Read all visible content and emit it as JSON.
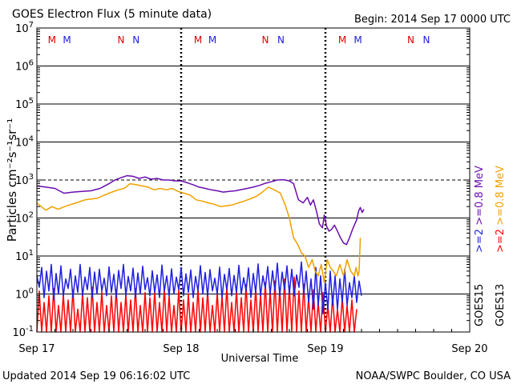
{
  "chart_data": {
    "type": "line",
    "title": "GOES Electron Flux (5 minute data)",
    "begin_label": "Begin: 2014 Sep 17 0000 UTC",
    "xlabel": "Universal Time",
    "ylabel": "Particles cm⁻²s⁻¹sr⁻¹",
    "y_scale": "log",
    "ylim": [
      0.1,
      10000000
    ],
    "y_tick_exponents": [
      "-1",
      "0",
      "1",
      "2",
      "3",
      "4",
      "5",
      "6",
      "7"
    ],
    "x_unit": "hours since 2014 Sep 17 0000 UTC",
    "xlim": [
      0,
      72
    ],
    "x_ticks": [
      {
        "label": "Sep 17",
        "value": 0
      },
      {
        "label": "Sep 18",
        "value": 24
      },
      {
        "label": "Sep 19",
        "value": 48
      },
      {
        "label": "Sep 20",
        "value": 72
      }
    ],
    "threshold": {
      "value": 1000,
      "style": "dashed"
    },
    "day_markers": [
      {
        "value": 24
      },
      {
        "value": 48
      }
    ],
    "mn_markers": [
      {
        "label": "M",
        "x": 2.5,
        "color": "#e00000"
      },
      {
        "label": "M",
        "x": 5.0,
        "color": "#2020e0"
      },
      {
        "label": "N",
        "x": 14.0,
        "color": "#e00000"
      },
      {
        "label": "N",
        "x": 16.5,
        "color": "#2020e0"
      },
      {
        "label": "M",
        "x": 26.8,
        "color": "#e00000"
      },
      {
        "label": "M",
        "x": 29.2,
        "color": "#2020e0"
      },
      {
        "label": "N",
        "x": 38.0,
        "color": "#e00000"
      },
      {
        "label": "N",
        "x": 40.6,
        "color": "#2020e0"
      },
      {
        "label": "M",
        "x": 50.8,
        "color": "#e00000"
      },
      {
        "label": "M",
        "x": 53.4,
        "color": "#2020e0"
      },
      {
        "label": "N",
        "x": 62.2,
        "color": "#e00000"
      },
      {
        "label": "N",
        "x": 64.8,
        "color": "#2020e0"
      }
    ],
    "legend": [
      {
        "sat": "GOES15",
        "entries": [
          {
            "label": ">=2",
            "color": "#2020e0"
          },
          {
            "label": ">=0.8 MeV",
            "color": "#6a0dad"
          }
        ]
      },
      {
        "sat": "GOES13",
        "entries": [
          {
            "label": ">=2",
            "color": "#ff0000"
          },
          {
            "label": ">=0.8 MeV",
            "color": "#f0a000"
          }
        ]
      }
    ],
    "series": [
      {
        "name": "GOES15 >=0.8 MeV",
        "color": "#6a0dad",
        "x": [
          0,
          1.5,
          3,
          4.5,
          6,
          7.5,
          9,
          10.5,
          12,
          13,
          14,
          15,
          16,
          17,
          18,
          19,
          20,
          21,
          22,
          23,
          24,
          25,
          26,
          27,
          28,
          29,
          30,
          31,
          32,
          33,
          34,
          35,
          36,
          37,
          38,
          39,
          40,
          41,
          42,
          42.7,
          43.5,
          44.3,
          45,
          45.5,
          46,
          46.5,
          47,
          47.5,
          47.8,
          48.2,
          48.6,
          49,
          49.5,
          50,
          50.5,
          51,
          51.5,
          52,
          52.5,
          52.9,
          53.2,
          53.5,
          53.8,
          54.1,
          54.4
        ],
        "y": [
          700,
          650,
          600,
          450,
          480,
          500,
          520,
          600,
          800,
          1000,
          1150,
          1300,
          1250,
          1100,
          1200,
          1050,
          1100,
          1000,
          1000,
          950,
          950,
          850,
          750,
          650,
          600,
          550,
          520,
          480,
          500,
          520,
          560,
          600,
          650,
          720,
          820,
          900,
          1000,
          1020,
          950,
          800,
          300,
          250,
          350,
          220,
          300,
          150,
          70,
          55,
          120,
          60,
          45,
          50,
          65,
          45,
          30,
          22,
          20,
          30,
          50,
          70,
          90,
          150,
          190,
          140,
          170
        ]
      },
      {
        "name": "GOES13 >=0.8 MeV",
        "color": "#f0a000",
        "x": [
          0,
          0.7,
          1.5,
          2.5,
          3.5,
          5,
          6.5,
          8,
          10,
          12,
          13.5,
          14.5,
          15.5,
          16.5,
          17.5,
          18.5,
          19.5,
          20.5,
          21.5,
          22.5,
          23.5,
          24.5,
          25.5,
          26.5,
          27.5,
          28.5,
          29.5,
          30.5,
          31.5,
          32.5,
          33.5,
          34.5,
          35.5,
          36.5,
          37.5,
          38.5,
          39.5,
          40.5,
          41.3,
          42,
          42.7,
          43.4,
          44,
          44.6,
          45.2,
          45.8,
          46.3,
          46.8,
          47.3,
          47.8,
          48.3,
          48.8,
          49.3,
          49.8,
          50.4,
          51,
          51.6,
          52.2,
          52.8,
          53.1,
          53.4,
          53.6,
          53.8
        ],
        "y": [
          250,
          200,
          160,
          200,
          170,
          210,
          250,
          300,
          330,
          450,
          550,
          600,
          800,
          750,
          700,
          650,
          550,
          600,
          550,
          600,
          500,
          450,
          400,
          300,
          280,
          250,
          230,
          200,
          210,
          220,
          250,
          280,
          320,
          370,
          480,
          650,
          550,
          450,
          220,
          100,
          30,
          20,
          12,
          10,
          5,
          8,
          4,
          3,
          6,
          2,
          8,
          5,
          4,
          3,
          6,
          3,
          8,
          4,
          3,
          5,
          3,
          4,
          30
        ]
      },
      {
        "name": "GOES15 >=2",
        "color": "#2020e0",
        "x": [
          0,
          0.4,
          0.8,
          1.2,
          1.6,
          2,
          2.4,
          2.8,
          3.2,
          3.6,
          4,
          4.4,
          4.8,
          5.2,
          5.6,
          6,
          6.4,
          6.8,
          7.2,
          7.6,
          8,
          8.4,
          8.8,
          9.2,
          9.6,
          10,
          10.4,
          10.8,
          11.2,
          11.6,
          12,
          12.4,
          12.8,
          13.2,
          13.6,
          14,
          14.4,
          14.8,
          15.2,
          15.6,
          16,
          16.4,
          16.8,
          17.2,
          17.6,
          18,
          18.4,
          18.8,
          19.2,
          19.6,
          20,
          20.4,
          20.8,
          21.2,
          21.6,
          22,
          22.4,
          22.8,
          23.2,
          23.6,
          24,
          24.4,
          24.8,
          25.2,
          25.6,
          26,
          26.4,
          26.8,
          27.2,
          27.6,
          28,
          28.4,
          28.8,
          29.2,
          29.6,
          30,
          30.4,
          30.8,
          31.2,
          31.6,
          32,
          32.4,
          32.8,
          33.2,
          33.6,
          34,
          34.4,
          34.8,
          35.2,
          35.6,
          36,
          36.4,
          36.8,
          37.2,
          37.6,
          38,
          38.4,
          38.8,
          39.2,
          39.6,
          40,
          40.4,
          40.8,
          41.2,
          41.6,
          42,
          42.4,
          42.8,
          43.2,
          43.6,
          44,
          44.4,
          44.8,
          45.2,
          45.6,
          46,
          46.4,
          46.8,
          47.2,
          47.6,
          48,
          48.4,
          48.8,
          49.2,
          49.6,
          50,
          50.4,
          50.8,
          51.2,
          51.6,
          52,
          52.4,
          52.8,
          53.2,
          53.6,
          54
        ],
        "y": [
          3,
          1.5,
          5,
          0.8,
          4,
          1.2,
          6,
          0.7,
          3.5,
          1,
          5.5,
          0.9,
          2.5,
          1.4,
          4.5,
          0.8,
          3,
          1.1,
          6,
          0.9,
          2.8,
          1.3,
          5,
          0.8,
          3.8,
          1,
          4.5,
          1.2,
          2.6,
          0.9,
          5.2,
          1.1,
          3.3,
          0.8,
          4.2,
          1.4,
          6,
          0.9,
          2.9,
          1.2,
          4.8,
          0.8,
          3.6,
          1,
          5.4,
          1.3,
          2.7,
          0.9,
          4.1,
          1.1,
          3.2,
          0.8,
          5.8,
          1.2,
          3,
          0.9,
          4.6,
          1,
          2.8,
          1.3,
          5,
          0.9,
          3.4,
          1.1,
          4.3,
          0.8,
          2.9,
          1.2,
          5.6,
          1,
          3.7,
          0.9,
          4.4,
          1.2,
          2.6,
          1,
          5.1,
          0.8,
          3.3,
          1.3,
          4.7,
          0.9,
          3.1,
          1.1,
          5.7,
          1,
          2.7,
          1.2,
          4.9,
          0.8,
          3.5,
          1.1,
          6.2,
          0.9,
          3,
          1.4,
          5.3,
          1,
          4.1,
          1.2,
          6.5,
          0.9,
          3.8,
          1.3,
          5.5,
          1,
          4.5,
          0.9,
          3.2,
          1.5,
          7,
          1,
          4,
          0.6,
          2.5,
          0.4,
          5,
          0.5,
          3,
          0.3,
          2,
          0.4,
          4,
          0.5,
          3,
          0.4,
          2.5,
          0.6,
          4.5,
          0.5,
          2,
          0.8,
          3,
          0.6,
          2.2,
          0.9
        ]
      },
      {
        "name": "GOES13 >=2",
        "color": "#ff0000",
        "x": [
          0,
          0.4,
          0.8,
          1.2,
          1.6,
          2,
          2.4,
          2.8,
          3.2,
          3.6,
          4,
          4.4,
          4.8,
          5.2,
          5.6,
          6,
          6.4,
          6.8,
          7.2,
          7.6,
          8,
          8.4,
          8.8,
          9.2,
          9.6,
          10,
          10.4,
          10.8,
          11.2,
          11.6,
          12,
          12.4,
          12.8,
          13.2,
          13.6,
          14,
          14.4,
          14.8,
          15.2,
          15.6,
          16,
          16.4,
          16.8,
          17.2,
          17.6,
          18,
          18.4,
          18.8,
          19.2,
          19.6,
          20,
          20.4,
          20.8,
          21.2,
          21.6,
          22,
          22.4,
          22.8,
          23.2,
          23.6,
          24,
          24.4,
          24.8,
          25.2,
          25.6,
          26,
          26.4,
          26.8,
          27.2,
          27.6,
          28,
          28.4,
          28.8,
          29.2,
          29.6,
          30,
          30.4,
          30.8,
          31.2,
          31.6,
          32,
          32.4,
          32.8,
          33.2,
          33.6,
          34,
          34.4,
          34.8,
          35.2,
          35.6,
          36,
          36.4,
          36.8,
          37.2,
          37.6,
          38,
          38.4,
          38.8,
          39.2,
          39.6,
          40,
          40.4,
          40.8,
          41.2,
          41.6,
          42,
          42.4,
          42.8,
          43.2,
          43.6,
          44,
          44.4,
          44.8,
          45.2,
          45.6,
          46,
          46.4,
          46.8,
          47.2,
          47.6,
          48,
          48.4,
          48.8,
          49.2,
          49.6,
          50,
          50.4,
          50.8,
          51.2,
          51.6,
          52,
          52.4,
          52.8,
          53.2
        ],
        "y": [
          0.1,
          1.2,
          0.1,
          0.6,
          0.1,
          0.9,
          0.1,
          1.4,
          0.1,
          0.5,
          0.1,
          1,
          0.1,
          0.7,
          0.1,
          1.3,
          0.1,
          0.4,
          0.1,
          1.1,
          0.1,
          0.8,
          0.1,
          1.5,
          0.1,
          0.6,
          0.1,
          1.2,
          0.1,
          0.5,
          0.1,
          0.9,
          0.1,
          1.3,
          0.1,
          0.6,
          0.1,
          1,
          0.1,
          0.7,
          0.1,
          1.4,
          0.1,
          0.5,
          0.1,
          1.1,
          0.1,
          0.8,
          0.1,
          1.2,
          0.1,
          0.6,
          0.1,
          1.5,
          0.1,
          0.9,
          0.1,
          0.5,
          0.1,
          1.3,
          0.1,
          0.7,
          0.1,
          1,
          0.1,
          0.6,
          0.1,
          1.4,
          0.1,
          0.8,
          0.1,
          1.2,
          0.1,
          0.5,
          0.1,
          1.1,
          0.1,
          0.9,
          0.1,
          1.6,
          0.1,
          0.6,
          0.1,
          1.3,
          0.1,
          0.8,
          0.1,
          1.8,
          0.1,
          0.7,
          0.1,
          1.5,
          0.1,
          1,
          0.1,
          2,
          0.1,
          1.2,
          0.1,
          2.2,
          0.1,
          1.4,
          0.1,
          2.5,
          0.1,
          1.6,
          0.1,
          2.8,
          0.1,
          1.2,
          0.1,
          1.8,
          0.1,
          0.8,
          0.1,
          1.3,
          0.1,
          0.6,
          0.1,
          1.1,
          0.1,
          0.5,
          0.1,
          0.9,
          0.1,
          0.4,
          0.1,
          0.8,
          0.1,
          0.5,
          0.1,
          0.7,
          0.1,
          0.4
        ]
      }
    ]
  },
  "footer": {
    "updated": "Updated 2014 Sep 19 06:16:02 UTC",
    "credit": "NOAA/SWPC Boulder, CO USA"
  }
}
